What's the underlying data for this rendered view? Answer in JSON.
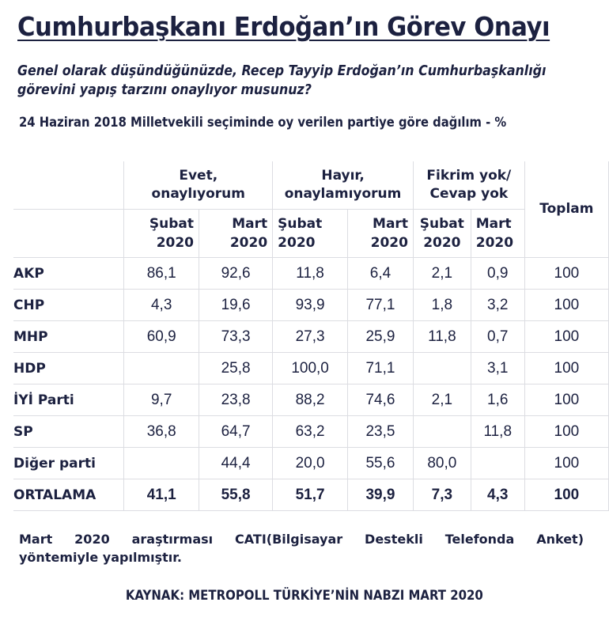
{
  "title": "Cumhurbaşkanı Erdoğan’ın Görev Onayı",
  "question": "Genel olarak düşündüğünüzde, Recep Tayyip Erdoğan’ın Cumhurbaşkanlığı görevini yapış tarzını onaylıyor musunuz?",
  "subtitle": "24 Haziran 2018 Milletvekili seçiminde oy verilen partiye göre dağılım - %",
  "table": {
    "groups": [
      {
        "line1": "Evet,",
        "line2": "onaylıyorum"
      },
      {
        "line1": "Hayır,",
        "line2": "onaylamıyorum"
      },
      {
        "line1": "Fikrim yok/",
        "line2": "Cevap yok"
      }
    ],
    "total_header": "Toplam",
    "periods": [
      {
        "month": "Şubat",
        "year": "2020"
      },
      {
        "month": "Mart",
        "year": "2020"
      },
      {
        "month": "Şubat",
        "year": "2020"
      },
      {
        "month": "Mart",
        "year": "2020"
      },
      {
        "month": "Şubat",
        "year": "2020"
      },
      {
        "month": "Mart",
        "year": "2020"
      }
    ],
    "rows": [
      {
        "party": "AKP",
        "values": [
          "86,1",
          "92,6",
          "11,8",
          "6,4",
          "2,1",
          "0,9",
          "100"
        ]
      },
      {
        "party": "CHP",
        "values": [
          "4,3",
          "19,6",
          "93,9",
          "77,1",
          "1,8",
          "3,2",
          "100"
        ]
      },
      {
        "party": "MHP",
        "values": [
          "60,9",
          "73,3",
          "27,3",
          "25,9",
          "11,8",
          "0,7",
          "100"
        ]
      },
      {
        "party": "HDP",
        "values": [
          "",
          "25,8",
          "100,0",
          "71,1",
          "",
          "3,1",
          "100"
        ]
      },
      {
        "party": "İYİ Parti",
        "values": [
          "9,7",
          "23,8",
          "88,2",
          "74,6",
          "2,1",
          "1,6",
          "100"
        ]
      },
      {
        "party": "SP",
        "values": [
          "36,8",
          "64,7",
          "63,2",
          "23,5",
          "",
          "11,8",
          "100"
        ]
      },
      {
        "party": "Diğer parti",
        "values": [
          "",
          "44,4",
          "20,0",
          "55,6",
          "80,0",
          "",
          "100"
        ]
      },
      {
        "party": "ORTALAMA",
        "values": [
          "41,1",
          "55,8",
          "51,7",
          "39,9",
          "7,3",
          "4,3",
          "100"
        ]
      }
    ]
  },
  "note": {
    "line1_words": [
      "Mart",
      "2020",
      "araştırması",
      "CATI(Bilgisayar",
      "Destekli",
      "Telefonda",
      "Anket)"
    ],
    "line2": "yöntemiyle yapılmıştır."
  },
  "source": "KAYNAK: METROPOLL TÜRKİYE’NİN NABZI MART 2020",
  "colors": {
    "text": "#1c2140",
    "grid": "#dcdde2",
    "background": "#ffffff"
  }
}
